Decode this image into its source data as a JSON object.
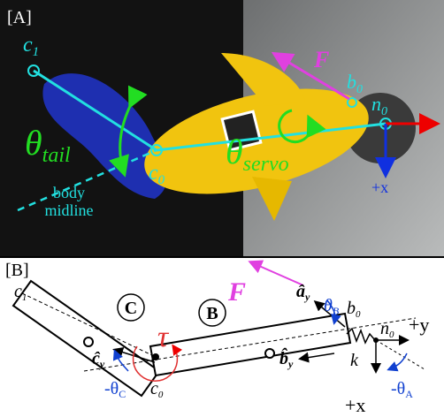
{
  "panel_a": {
    "label": "[A]",
    "c1": {
      "base": "c",
      "sub": "1"
    },
    "force": "F",
    "b0": {
      "base": "b",
      "sub": "0"
    },
    "n0": {
      "base": "n",
      "sub": "0"
    },
    "theta_tail": {
      "base": "θ",
      "sub": "tail"
    },
    "theta_servo": {
      "base": "θ",
      "sub": "servo"
    },
    "c0": {
      "base": "c",
      "sub": "0"
    },
    "plus_x": "+x",
    "midline": [
      "body",
      "midline"
    ]
  },
  "panel_b": {
    "label": "[B]",
    "c1": {
      "base": "c",
      "sub": "1"
    },
    "body_c": "C",
    "body_b": "B",
    "force": "F",
    "a_y": {
      "base": "â",
      "sub": "y"
    },
    "theta_b": {
      "base": "θ",
      "sub": "B"
    },
    "b0": {
      "base": "b",
      "sub": "0"
    },
    "tau": "τ",
    "c_y": {
      "base": "ĉ",
      "sub": "y"
    },
    "b_y": {
      "base": "b̂",
      "sub": "y"
    },
    "spring": "k",
    "n0": {
      "base": "n",
      "sub": "0"
    },
    "plus_y": "+y",
    "plus_x": "+x",
    "theta_c": {
      "base": "-θ",
      "sub": "C"
    },
    "c0": {
      "base": "c",
      "sub": "0"
    },
    "theta_a": {
      "base": "-θ",
      "sub": "A"
    }
  }
}
